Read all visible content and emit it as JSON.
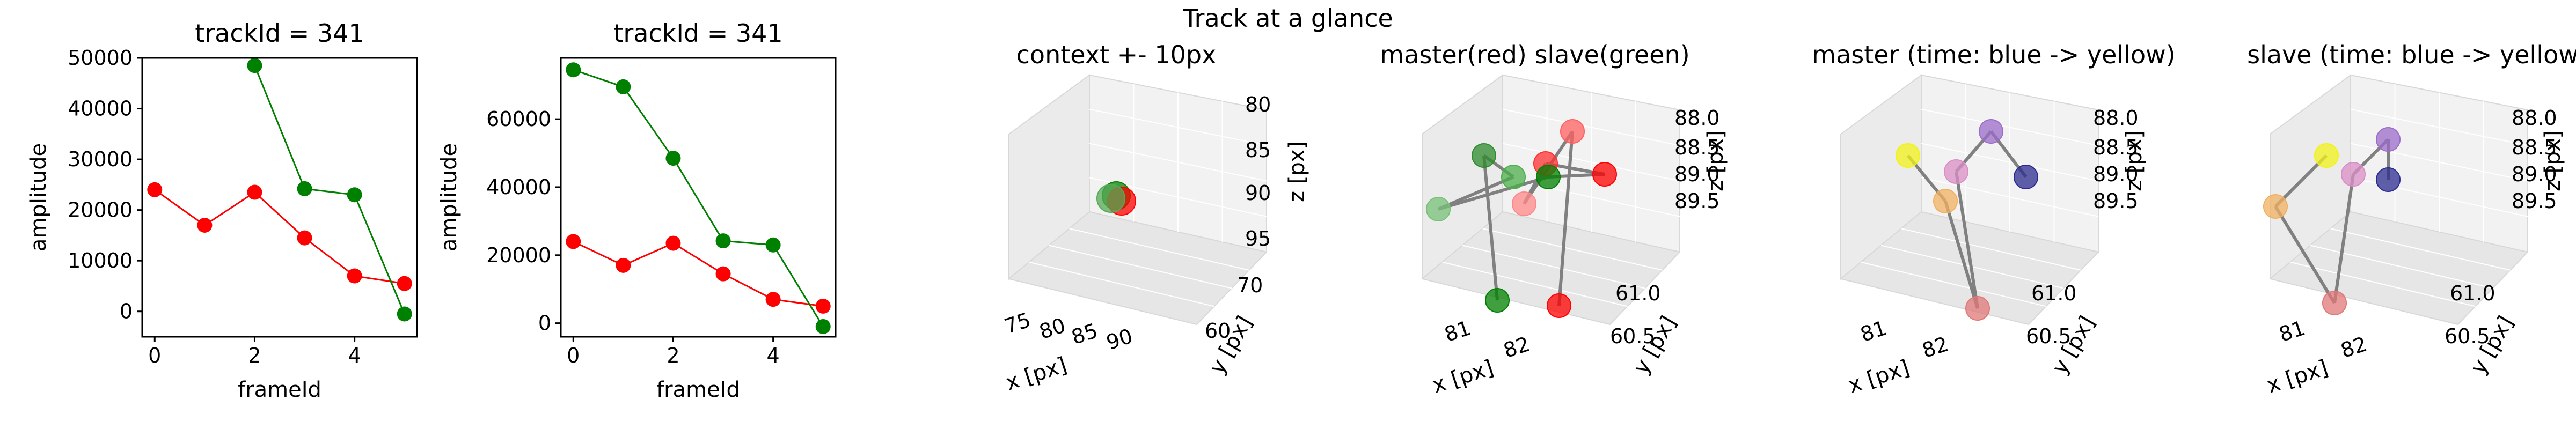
{
  "suptitle": "Track at a glance",
  "chart_data": [
    {
      "type": "line",
      "title": "trackId = 341",
      "xlabel": "frameId",
      "ylabel": "amplitude",
      "xlim": [
        -0.25,
        5.25
      ],
      "ylim": [
        -5000,
        50000
      ],
      "xticks": [
        "0",
        "2",
        "4"
      ],
      "yticks": [
        "0",
        "10000",
        "20000",
        "30000",
        "40000",
        "50000"
      ],
      "series": [
        {
          "color": "#ff0000",
          "x": [
            0,
            1,
            2,
            3,
            4,
            5
          ],
          "y": [
            24000,
            17000,
            23500,
            14500,
            7000,
            5500
          ]
        },
        {
          "color": "#008000",
          "x": [
            2,
            3,
            4,
            5
          ],
          "y": [
            48500,
            24200,
            23000,
            -500
          ]
        }
      ]
    },
    {
      "type": "line",
      "title": "trackId = 341",
      "xlabel": "frameId",
      "ylabel": "amplitude",
      "xlim": [
        -0.25,
        5.25
      ],
      "ylim": [
        -4000,
        78000
      ],
      "xticks": [
        "0",
        "2",
        "4"
      ],
      "yticks": [
        "0",
        "20000",
        "40000",
        "60000"
      ],
      "series": [
        {
          "color": "#ff0000",
          "x": [
            0,
            1,
            2,
            3,
            4,
            5
          ],
          "y": [
            24000,
            17000,
            23500,
            14500,
            7000,
            5000
          ]
        },
        {
          "color": "#008000",
          "x": [
            0,
            1,
            2,
            3,
            4,
            5
          ],
          "y": [
            74500,
            69500,
            48500,
            24200,
            23000,
            -1000
          ]
        }
      ]
    },
    {
      "type": "scatter3d",
      "title": "context +- 10px",
      "xlabel": "x [px]",
      "ylabel": "y [px]",
      "zlabel": "z [px]",
      "xticks": [
        "75",
        "80",
        "85",
        "90"
      ],
      "yticks": [
        "60",
        "70"
      ],
      "zticks": [
        "80",
        "85",
        "90",
        "95"
      ],
      "points": [
        {
          "x": 81.5,
          "y": 61.0,
          "z": 88.8,
          "color": "#008000"
        },
        {
          "x": 81.8,
          "y": 60.8,
          "z": 88.6,
          "color": "#ff0000"
        },
        {
          "x": 81.2,
          "y": 60.9,
          "z": 88.5,
          "color": "#55aa55"
        }
      ]
    },
    {
      "type": "scatter3d",
      "title": "master(red) slave(green)",
      "xlabel": "x [px]",
      "ylabel": "y [px]",
      "zlabel": "z [px]",
      "xticks": [
        "81",
        "82"
      ],
      "yticks": [
        "60.5",
        "61.0"
      ],
      "zticks": [
        "88.0",
        "88.5",
        "89.0",
        "89.5"
      ],
      "points": [
        {
          "color": "#ff0000"
        },
        {
          "color": "#ff6060"
        },
        {
          "color": "#ff8888"
        },
        {
          "color": "#ff3030"
        },
        {
          "color": "#ff0000"
        },
        {
          "color": "#008000"
        },
        {
          "color": "#2e8b2e"
        },
        {
          "color": "#4caf4c"
        },
        {
          "color": "#78c278"
        },
        {
          "color": "#008000"
        }
      ]
    },
    {
      "type": "scatter3d",
      "title": "master (time: blue -> yellow)",
      "xlabel": "x [px]",
      "ylabel": "y [px]",
      "zlabel": "z [px]",
      "xticks": [
        "81",
        "82"
      ],
      "yticks": [
        "60.5",
        "61.0"
      ],
      "zticks": [
        "88.0",
        "88.5",
        "89.0",
        "89.5"
      ],
      "points": [
        {
          "color": "#2b2b8f"
        },
        {
          "color": "#9b6bc9"
        },
        {
          "color": "#d98fc6"
        },
        {
          "color": "#e07878"
        },
        {
          "color": "#f0b060"
        },
        {
          "color": "#f2f21a"
        }
      ]
    },
    {
      "type": "scatter3d",
      "title": "slave (time: blue -> yellow)",
      "xlabel": "x [px]",
      "ylabel": "y [px]",
      "zlabel": "z [px]",
      "xticks": [
        "81",
        "82"
      ],
      "yticks": [
        "60.5",
        "61.0"
      ],
      "zticks": [
        "88.0",
        "88.5",
        "89.0",
        "89.5"
      ],
      "points": [
        {
          "color": "#2b2b8f"
        },
        {
          "color": "#9b6bc9"
        },
        {
          "color": "#d98fc6"
        },
        {
          "color": "#e07878"
        },
        {
          "color": "#f0b060"
        },
        {
          "color": "#f2f21a"
        }
      ]
    }
  ]
}
